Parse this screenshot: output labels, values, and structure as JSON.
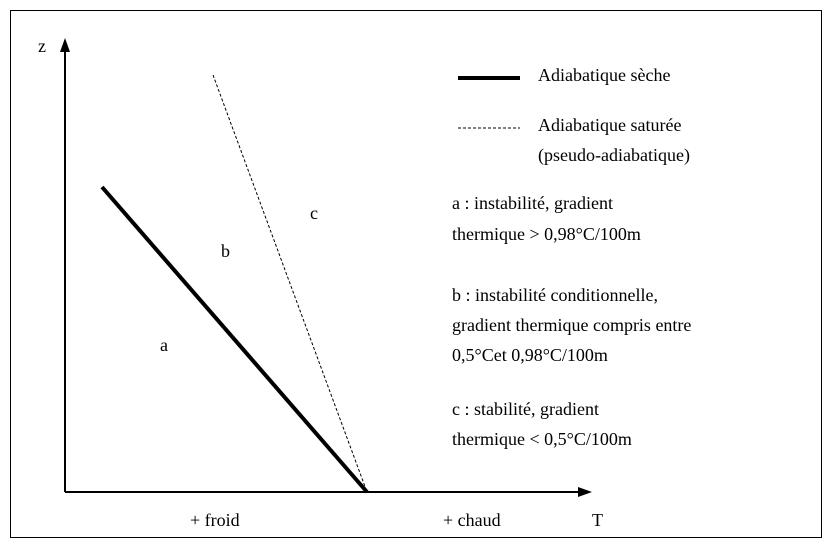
{
  "axes": {
    "y_label": "z",
    "x_label": "T",
    "x_left": "+ froid",
    "x_right": "+ chaud"
  },
  "regions": [
    "a",
    "b",
    "c"
  ],
  "legend": {
    "solid": "Adiabatique sèche",
    "dashed": [
      "Adiabatique saturée",
      "(pseudo-adiabatique)"
    ]
  },
  "notes": [
    [
      "a : instabilité, gradient",
      "thermique > 0,98°C/100m"
    ],
    [
      "b : instabilité conditionnelle,",
      "gradient thermique compris entre",
      "0,5°Cet 0,98°C/100m"
    ],
    [
      "c : stabilité, gradient",
      "thermique < 0,5°C/100m"
    ]
  ]
}
